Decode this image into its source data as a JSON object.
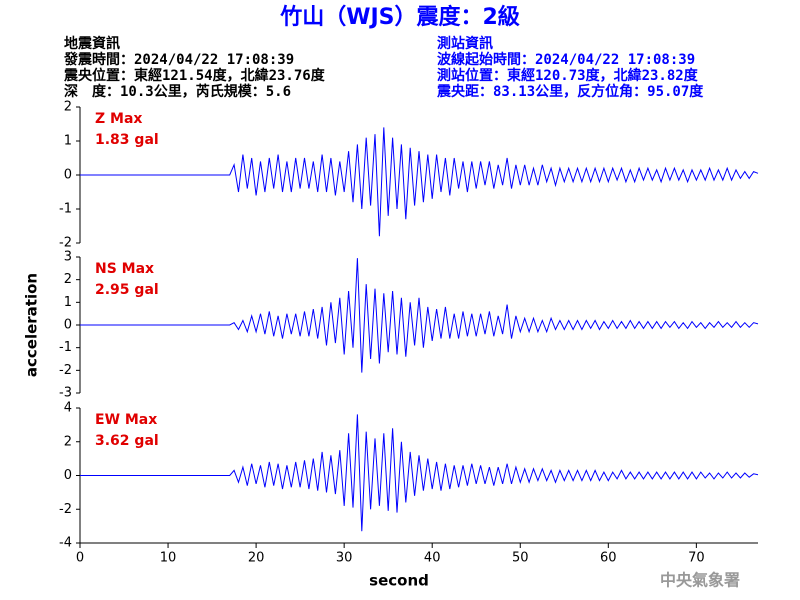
{
  "title": "竹山（WJS）震度：2級",
  "event_info": {
    "heading": "地震資訊",
    "lines": [
      "發震時間：2024/04/22 17:08:39",
      "震央位置：東經121.54度，北緯23.76度",
      "深　度：10.3公里，芮氏規模：5.6"
    ]
  },
  "station_info": {
    "heading": "測站資訊",
    "lines": [
      "波線起始時間：2024/04/22 17:08:39",
      "測站位置：東經120.73度，北緯23.82度",
      "震央距：83.13公里，反方位角：95.07度"
    ]
  },
  "footer": "中央氣象署",
  "chart_data": [
    {
      "type": "line",
      "annotation": "Z Max",
      "max_label": "1.83 gal",
      "color": "#0000ff",
      "xlim": [
        0,
        77
      ],
      "ylim": [
        -2,
        2
      ],
      "yticks": [
        -2,
        -1,
        0,
        1,
        2
      ],
      "x": [
        0,
        17,
        17.5,
        18,
        18.5,
        19,
        19.5,
        20,
        20.5,
        21,
        21.5,
        22,
        22.5,
        23,
        23.5,
        24,
        24.5,
        25,
        25.5,
        26,
        26.5,
        27,
        27.5,
        28,
        28.5,
        29,
        29.5,
        30,
        30.5,
        31,
        31.5,
        32,
        32.5,
        33,
        33.5,
        34,
        34.5,
        35,
        35.5,
        36,
        36.5,
        37,
        37.5,
        38,
        38.5,
        39,
        39.5,
        40,
        40.5,
        41,
        41.5,
        42,
        42.5,
        43,
        43.5,
        44,
        44.5,
        45,
        45.5,
        46,
        46.5,
        47,
        47.5,
        48,
        48.5,
        49,
        49.5,
        50,
        50.5,
        51,
        51.5,
        52,
        52.5,
        53,
        53.5,
        54,
        54.5,
        55,
        55.5,
        56,
        56.5,
        57,
        57.5,
        58,
        58.5,
        59,
        59.5,
        60,
        60.5,
        61,
        61.5,
        62,
        62.5,
        63,
        63.5,
        64,
        64.5,
        65,
        65.5,
        66,
        66.5,
        67,
        67.5,
        68,
        68.5,
        69,
        69.5,
        70,
        70.5,
        71,
        71.5,
        72,
        72.5,
        73,
        73.5,
        74,
        74.5,
        75,
        75.5,
        76,
        76.5,
        77
      ],
      "values": [
        0,
        0,
        0.3,
        -0.5,
        0.6,
        -0.4,
        0.5,
        -0.6,
        0.4,
        -0.5,
        0.5,
        -0.4,
        0.6,
        -0.5,
        0.4,
        -0.5,
        0.5,
        -0.4,
        0.5,
        -0.4,
        0.4,
        -0.5,
        0.6,
        -0.5,
        0.5,
        -0.6,
        0.4,
        -0.5,
        0.7,
        -0.8,
        0.9,
        -1.0,
        1.1,
        -0.9,
        1.2,
        -1.8,
        1.4,
        -1.2,
        1.1,
        -1.0,
        0.9,
        -1.3,
        0.8,
        -0.9,
        0.7,
        -0.8,
        0.6,
        -0.7,
        0.6,
        -0.5,
        0.5,
        -0.6,
        0.5,
        -0.4,
        0.4,
        -0.5,
        0.4,
        -0.4,
        0.4,
        -0.3,
        0.4,
        -0.4,
        0.3,
        -0.3,
        0.5,
        -0.4,
        0.3,
        -0.3,
        0.3,
        -0.3,
        0.2,
        -0.3,
        0.3,
        -0.2,
        0.2,
        -0.3,
        0.2,
        -0.2,
        0.2,
        -0.2,
        0.2,
        -0.2,
        0.2,
        -0.2,
        0.2,
        -0.2,
        0.2,
        -0.2,
        0.2,
        -0.15,
        0.2,
        -0.2,
        0.15,
        -0.2,
        0.2,
        -0.15,
        0.2,
        -0.15,
        0.15,
        -0.2,
        0.2,
        -0.15,
        0.2,
        -0.15,
        0.15,
        -0.2,
        0.15,
        -0.15,
        0.15,
        -0.15,
        0.2,
        -0.15,
        0.15,
        -0.15,
        0.2,
        -0.15,
        0.15,
        -0.1,
        0.1,
        -0.1,
        0.1,
        0.05
      ]
    },
    {
      "type": "line",
      "annotation": "NS Max",
      "max_label": "2.95 gal",
      "ylabel": "acceleration",
      "color": "#0000ff",
      "xlim": [
        0,
        77
      ],
      "ylim": [
        -3,
        3
      ],
      "yticks": [
        -3,
        -2,
        -1,
        0,
        1,
        2,
        3
      ],
      "x": [
        0,
        17,
        17.5,
        18,
        18.5,
        19,
        19.5,
        20,
        20.5,
        21,
        21.5,
        22,
        22.5,
        23,
        23.5,
        24,
        24.5,
        25,
        25.5,
        26,
        26.5,
        27,
        27.5,
        28,
        28.5,
        29,
        29.5,
        30,
        30.5,
        31,
        31.5,
        32,
        32.5,
        33,
        33.5,
        34,
        34.5,
        35,
        35.5,
        36,
        36.5,
        37,
        37.5,
        38,
        38.5,
        39,
        39.5,
        40,
        40.5,
        41,
        41.5,
        42,
        42.5,
        43,
        43.5,
        44,
        44.5,
        45,
        45.5,
        46,
        46.5,
        47,
        47.5,
        48,
        48.5,
        49,
        49.5,
        50,
        50.5,
        51,
        51.5,
        52,
        52.5,
        53,
        53.5,
        54,
        54.5,
        55,
        55.5,
        56,
        56.5,
        57,
        57.5,
        58,
        58.5,
        59,
        59.5,
        60,
        60.5,
        61,
        61.5,
        62,
        62.5,
        63,
        63.5,
        64,
        64.5,
        65,
        65.5,
        66,
        66.5,
        67,
        67.5,
        68,
        68.5,
        69,
        69.5,
        70,
        70.5,
        71,
        71.5,
        72,
        72.5,
        73,
        73.5,
        74,
        74.5,
        75,
        75.5,
        76,
        76.5,
        77
      ],
      "values": [
        0,
        0,
        0.1,
        -0.2,
        0.2,
        -0.3,
        0.4,
        -0.3,
        0.5,
        -0.4,
        0.6,
        -0.5,
        0.4,
        -0.6,
        0.5,
        -0.4,
        0.5,
        -0.5,
        0.6,
        -0.5,
        0.7,
        -0.6,
        0.8,
        -0.9,
        1.0,
        -0.8,
        1.2,
        -1.3,
        1.5,
        -1.0,
        2.95,
        -2.1,
        1.8,
        -1.5,
        1.6,
        -1.7,
        1.4,
        -1.2,
        1.5,
        -1.3,
        1.2,
        -1.4,
        1.0,
        -0.9,
        1.2,
        -1.0,
        0.8,
        -0.7,
        0.7,
        -0.6,
        0.8,
        -0.6,
        0.5,
        -0.6,
        0.6,
        -0.5,
        0.5,
        -0.5,
        0.5,
        -0.4,
        0.6,
        -0.5,
        0.4,
        -0.4,
        0.9,
        -0.6,
        0.4,
        -0.3,
        0.3,
        -0.3,
        0.3,
        -0.3,
        0.2,
        -0.3,
        0.3,
        -0.2,
        0.2,
        -0.2,
        0.2,
        -0.2,
        0.2,
        -0.2,
        0.2,
        -0.15,
        0.2,
        -0.2,
        0.15,
        -0.15,
        0.2,
        -0.15,
        0.15,
        -0.15,
        0.2,
        -0.15,
        0.15,
        -0.15,
        0.15,
        -0.15,
        0.15,
        -0.15,
        0.15,
        -0.1,
        0.15,
        -0.15,
        0.1,
        -0.15,
        0.15,
        -0.1,
        0.1,
        -0.15,
        0.1,
        -0.1,
        0.15,
        -0.1,
        0.1,
        -0.1,
        0.15,
        -0.1,
        0.1,
        -0.1,
        0.1,
        0.05
      ]
    },
    {
      "type": "line",
      "annotation": "EW Max",
      "max_label": "3.62 gal",
      "xlabel": "second",
      "color": "#0000ff",
      "xlim": [
        0,
        77
      ],
      "ylim": [
        -4,
        4
      ],
      "yticks": [
        -4,
        -2,
        0,
        2,
        4
      ],
      "xticks": [
        0,
        10,
        20,
        30,
        40,
        50,
        60,
        70
      ],
      "x": [
        0,
        17,
        17.5,
        18,
        18.5,
        19,
        19.5,
        20,
        20.5,
        21,
        21.5,
        22,
        22.5,
        23,
        23.5,
        24,
        24.5,
        25,
        25.5,
        26,
        26.5,
        27,
        27.5,
        28,
        28.5,
        29,
        29.5,
        30,
        30.5,
        31,
        31.5,
        32,
        32.5,
        33,
        33.5,
        34,
        34.5,
        35,
        35.5,
        36,
        36.5,
        37,
        37.5,
        38,
        38.5,
        39,
        39.5,
        40,
        40.5,
        41,
        41.5,
        42,
        42.5,
        43,
        43.5,
        44,
        44.5,
        45,
        45.5,
        46,
        46.5,
        47,
        47.5,
        48,
        48.5,
        49,
        49.5,
        50,
        50.5,
        51,
        51.5,
        52,
        52.5,
        53,
        53.5,
        54,
        54.5,
        55,
        55.5,
        56,
        56.5,
        57,
        57.5,
        58,
        58.5,
        59,
        59.5,
        60,
        60.5,
        61,
        61.5,
        62,
        62.5,
        63,
        63.5,
        64,
        64.5,
        65,
        65.5,
        66,
        66.5,
        67,
        67.5,
        68,
        68.5,
        69,
        69.5,
        70,
        70.5,
        71,
        71.5,
        72,
        72.5,
        73,
        73.5,
        74,
        74.5,
        75,
        75.5,
        76,
        76.5,
        77
      ],
      "values": [
        0,
        0,
        0.3,
        -0.4,
        0.5,
        -0.6,
        0.7,
        -0.5,
        0.6,
        -0.7,
        0.8,
        -0.6,
        0.7,
        -0.8,
        0.6,
        -0.7,
        0.8,
        -0.7,
        0.9,
        -0.8,
        1.0,
        -0.9,
        1.4,
        -1.0,
        1.2,
        -1.1,
        1.5,
        -1.8,
        2.5,
        -1.9,
        3.62,
        -3.3,
        2.6,
        -2.0,
        2.2,
        -1.8,
        2.5,
        -2.1,
        2.8,
        -2.2,
        2.0,
        -1.6,
        1.4,
        -1.2,
        1.2,
        -0.9,
        1.0,
        -0.8,
        0.8,
        -0.9,
        0.7,
        -0.8,
        0.6,
        -0.7,
        0.6,
        -0.6,
        0.7,
        -0.5,
        0.6,
        -0.5,
        0.5,
        -0.6,
        0.5,
        -0.5,
        0.7,
        -0.5,
        0.5,
        -0.4,
        0.4,
        -0.4,
        0.4,
        -0.3,
        0.4,
        -0.3,
        0.3,
        -0.4,
        0.3,
        -0.3,
        0.3,
        -0.3,
        0.3,
        -0.3,
        0.3,
        -0.3,
        0.3,
        -0.3,
        0.2,
        -0.3,
        0.2,
        -0.2,
        0.3,
        -0.2,
        0.2,
        -0.2,
        0.2,
        -0.2,
        0.2,
        -0.2,
        0.2,
        -0.2,
        0.2,
        -0.2,
        0.2,
        -0.2,
        0.2,
        -0.2,
        0.2,
        -0.2,
        0.2,
        -0.15,
        0.15,
        -0.2,
        0.15,
        -0.15,
        0.2,
        -0.15,
        0.15,
        -0.15,
        0.15,
        -0.1,
        0.1,
        0.05
      ]
    }
  ]
}
